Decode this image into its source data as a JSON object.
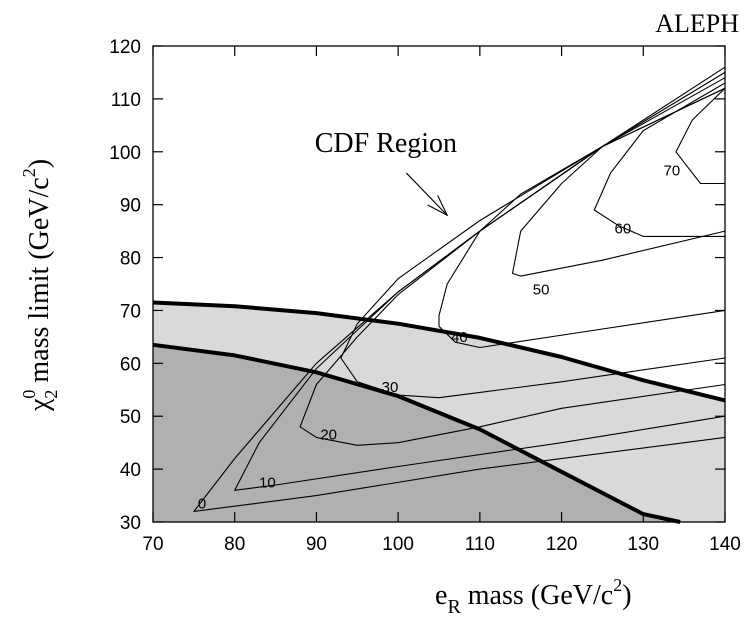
{
  "chart_data": {
    "type": "line",
    "title": "ALEPH",
    "xlabel": {
      "main": "e",
      "sub": "R",
      "rest": " mass  (GeV/c",
      "sup": "2",
      "close": ")"
    },
    "ylabel": {
      "main": "χ",
      "sub": "2",
      "sup0": "0",
      "rest": " mass limit (GeV/c",
      "sup": "2",
      "close": ")"
    },
    "xlim": [
      70,
      140
    ],
    "ylim": [
      30,
      120
    ],
    "xticks": [
      70,
      80,
      90,
      100,
      110,
      120,
      130,
      140
    ],
    "yticks": [
      30,
      40,
      50,
      60,
      70,
      80,
      90,
      100,
      110,
      120
    ],
    "grid": false,
    "colors": {
      "light_region": "#d9d9d9",
      "dark_region": "#b0b0b0",
      "lines": "#000000"
    },
    "regions": [
      {
        "shade": "light",
        "boundary": [
          [
            70,
            71.5
          ],
          [
            80,
            70.8
          ],
          [
            90,
            69.5
          ],
          [
            100,
            67.5
          ],
          [
            110,
            64.8
          ],
          [
            120,
            61.2
          ],
          [
            130,
            56.8
          ],
          [
            140,
            53.0
          ]
        ]
      },
      {
        "shade": "dark",
        "boundary": [
          [
            70,
            63.5
          ],
          [
            80,
            61.5
          ],
          [
            90,
            58.3
          ],
          [
            100,
            53.8
          ],
          [
            110,
            47.5
          ],
          [
            120,
            39.5
          ],
          [
            130,
            31.5
          ],
          [
            134.5,
            30.0
          ]
        ]
      }
    ],
    "contours": [
      {
        "label": "0",
        "label_at": [
          76,
          33.5
        ],
        "points": [
          [
            140,
            116
          ],
          [
            125,
            101
          ],
          [
            110,
            85
          ],
          [
            100,
            73.5
          ],
          [
            90,
            60
          ],
          [
            80,
            42
          ],
          [
            75,
            32
          ],
          [
            90,
            35
          ],
          [
            110,
            40
          ],
          [
            140,
            46
          ]
        ]
      },
      {
        "label": "10",
        "label_at": [
          84,
          37.5
        ],
        "points": [
          [
            140,
            115
          ],
          [
            125,
            101
          ],
          [
            110,
            85
          ],
          [
            100,
            73.5
          ],
          [
            90,
            59
          ],
          [
            83,
            45
          ],
          [
            80,
            36
          ],
          [
            85,
            37
          ],
          [
            100,
            40.5
          ],
          [
            120,
            45
          ],
          [
            140,
            50
          ]
        ]
      },
      {
        "label": "20",
        "label_at": [
          91.5,
          46.5
        ],
        "points": [
          [
            140,
            114
          ],
          [
            125,
            101
          ],
          [
            110,
            85
          ],
          [
            100,
            73
          ],
          [
            95,
            65
          ],
          [
            90,
            56
          ],
          [
            88,
            48
          ],
          [
            90,
            46
          ],
          [
            95,
            44.5
          ],
          [
            100,
            45
          ],
          [
            110,
            48
          ],
          [
            120,
            51.5
          ],
          [
            140,
            56
          ]
        ]
      },
      {
        "label": "30",
        "label_at": [
          99,
          55.5
        ],
        "points": [
          [
            140,
            112
          ],
          [
            125,
            101
          ],
          [
            110,
            87
          ],
          [
            100,
            76
          ],
          [
            95,
            67.5
          ],
          [
            93,
            61
          ],
          [
            95,
            56.5
          ],
          [
            100,
            54
          ],
          [
            105,
            53.5
          ],
          [
            110,
            54.5
          ],
          [
            120,
            56.5
          ],
          [
            140,
            61
          ]
        ]
      },
      {
        "label": "40",
        "label_at": [
          107.5,
          65
        ],
        "points": [
          [
            125,
            101
          ],
          [
            115,
            92
          ],
          [
            110,
            85
          ],
          [
            106,
            75
          ],
          [
            105,
            69
          ],
          [
            105,
            67
          ],
          [
            107,
            64
          ],
          [
            110,
            63
          ],
          [
            125,
            66.5
          ],
          [
            140,
            70
          ]
        ]
      },
      {
        "label": "50",
        "label_at": [
          117.5,
          74
        ],
        "points": [
          [
            140,
            112
          ],
          [
            125,
            101
          ],
          [
            120,
            94
          ],
          [
            115,
            85
          ],
          [
            114,
            77
          ],
          [
            115,
            76.5
          ],
          [
            125,
            79.5
          ],
          [
            140,
            85
          ]
        ]
      },
      {
        "label": "60",
        "label_at": [
          127.5,
          85.5
        ],
        "points": [
          [
            140,
            113
          ],
          [
            130,
            104
          ],
          [
            126,
            96
          ],
          [
            124,
            89
          ],
          [
            127,
            86
          ],
          [
            130,
            84
          ],
          [
            140,
            84
          ]
        ]
      },
      {
        "label": "70",
        "label_at": [
          133.5,
          96.5
        ],
        "points": [
          [
            140,
            112
          ],
          [
            136,
            106
          ],
          [
            134,
            100
          ],
          [
            135,
            98
          ],
          [
            137,
            94
          ],
          [
            140,
            94
          ]
        ]
      }
    ],
    "annotations": [
      {
        "text": "CDF Region",
        "at": [
          98.5,
          100
        ],
        "arrow_from": [
          101,
          96
        ],
        "arrow_to": [
          106,
          88
        ]
      }
    ]
  }
}
